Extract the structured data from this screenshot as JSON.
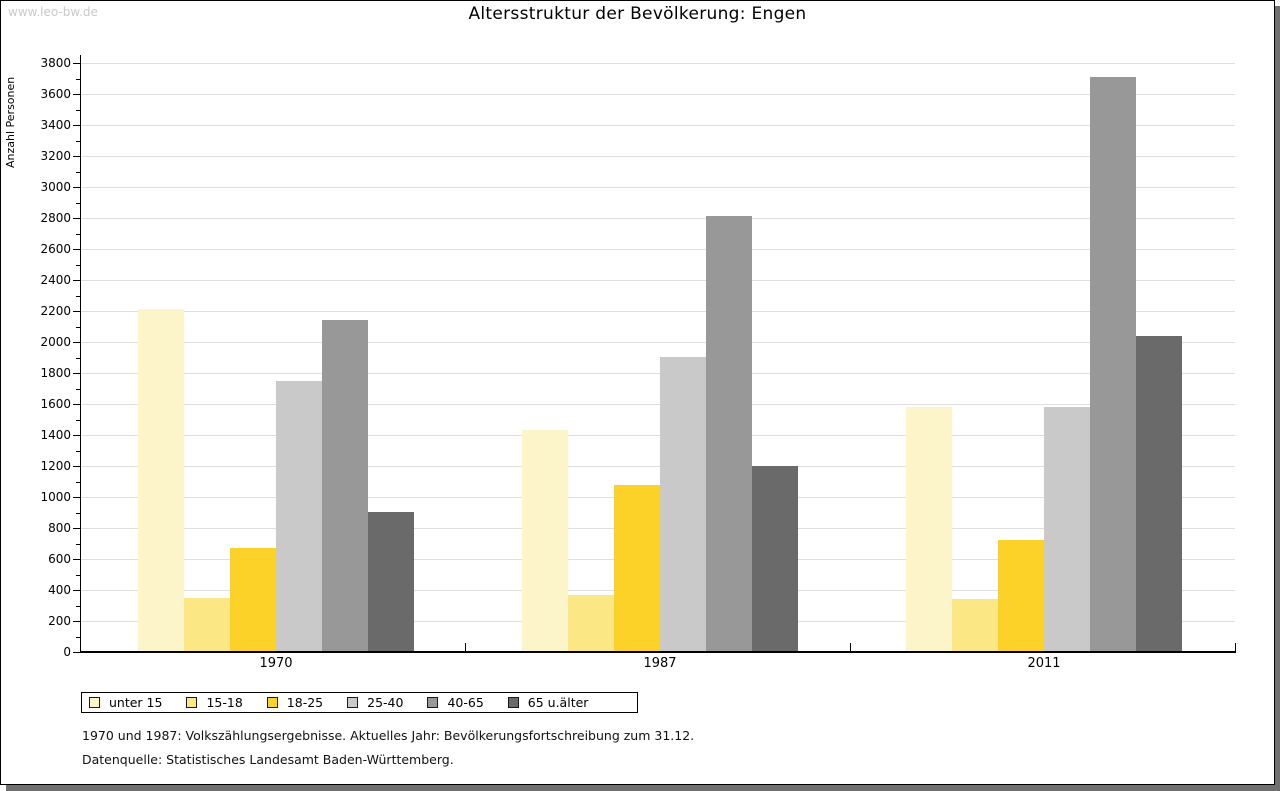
{
  "page": {
    "watermark": "www.leo-bw.de",
    "title": "Altersstruktur der Bevölkerung: Engen",
    "footnote_line1": "1970 und 1987: Volkszählungsergebnisse. Aktuelles Jahr: Bevölkerungsfortschreibung zum 31.12.",
    "footnote_line2": "Datenquelle: Statistisches Landesamt Baden-Württemberg."
  },
  "colors": {
    "page_shadow": "#707070",
    "watermark": "#c9c9c9",
    "gridline": "#dedede",
    "axis": "#000000"
  },
  "chart_data": {
    "type": "bar",
    "title": "Altersstruktur der Bevölkerung: Engen",
    "xlabel": "",
    "ylabel": "Anzahl Personen",
    "ylim": [
      0,
      3800
    ],
    "ytick_step": 200,
    "minor_tick_step": 100,
    "grid": true,
    "legend_position": "bottom-left",
    "categories": [
      "1970",
      "1987",
      "2011"
    ],
    "series": [
      {
        "name": "unter 15",
        "color": "#fcf5c9",
        "values": [
          2210,
          1430,
          1580
        ]
      },
      {
        "name": "15-18",
        "color": "#fbe784",
        "values": [
          350,
          370,
          340
        ]
      },
      {
        "name": "18-25",
        "color": "#fcd228",
        "values": [
          670,
          1080,
          720
        ]
      },
      {
        "name": "25-40",
        "color": "#c9c9c9",
        "values": [
          1750,
          1900,
          1580
        ]
      },
      {
        "name": "40-65",
        "color": "#989898",
        "values": [
          2140,
          2810,
          3710
        ]
      },
      {
        "name": "65 u.älter",
        "color": "#6a6a6a",
        "values": [
          900,
          1200,
          2040
        ]
      }
    ]
  }
}
